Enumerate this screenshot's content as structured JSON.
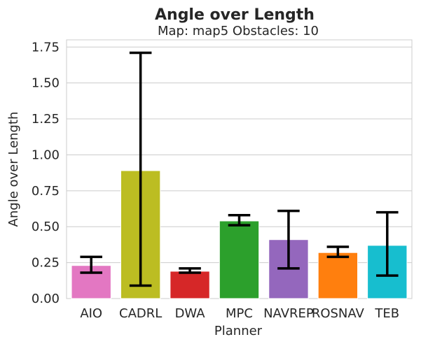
{
  "chart_data": {
    "type": "bar",
    "title": "Angle over Length",
    "subtitle": "Map: map5 Obstacles: 10",
    "xlabel": "Planner",
    "ylabel": "Angle over Length",
    "categories": [
      "AIO",
      "CADRL",
      "DWA",
      "MPC",
      "NAVREP",
      "ROSNAV",
      "TEB"
    ],
    "values": [
      0.23,
      0.89,
      0.19,
      0.54,
      0.41,
      0.32,
      0.37
    ],
    "error_low": [
      0.18,
      0.09,
      0.18,
      0.51,
      0.21,
      0.29,
      0.16
    ],
    "error_high": [
      0.29,
      1.71,
      0.21,
      0.58,
      0.61,
      0.36,
      0.6
    ],
    "colors": [
      "#e377c2",
      "#bcbd22",
      "#d62728",
      "#2ca02c",
      "#9467bd",
      "#ff7f0e",
      "#17becf"
    ],
    "ylim": [
      0,
      1.8
    ],
    "yticks": [
      "0.00",
      "0.25",
      "0.50",
      "0.75",
      "1.00",
      "1.25",
      "1.50",
      "1.75"
    ],
    "grid": "horizontal"
  }
}
